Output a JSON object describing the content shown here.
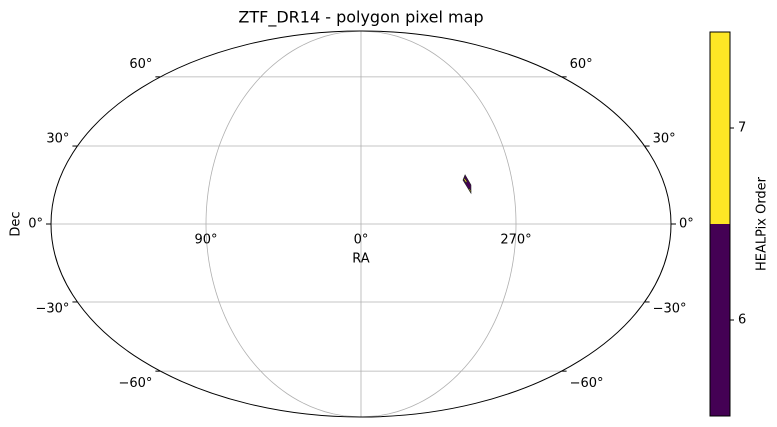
{
  "chart_data": {
    "type": "skymap",
    "projection": "mollweide",
    "title": "ZTF_DR14 - polygon pixel map",
    "xlabel": "RA",
    "ylabel": "Dec",
    "ra_ticks": [
      {
        "value": 90,
        "label": "90°"
      },
      {
        "value": 0,
        "label": "0°"
      },
      {
        "value": 270,
        "label": "270°"
      }
    ],
    "dec_ticks": [
      {
        "value": -60,
        "label": "−60°"
      },
      {
        "value": -30,
        "label": "−30°"
      },
      {
        "value": 0,
        "label": "0°"
      },
      {
        "value": 30,
        "label": "30°"
      },
      {
        "value": 60,
        "label": "60°"
      }
    ],
    "grid": true,
    "pixels": [
      {
        "order": 6,
        "ra": [
          297.5,
          294.8,
          295.3,
          299.2
        ],
        "dec": [
          18.7,
          14.8,
          11.7,
          16.7
        ]
      },
      {
        "order": 7,
        "ra": [
          298.2,
          297.0,
          297.4,
          298.6
        ],
        "dec": [
          17.6,
          16.2,
          15.5,
          16.9
        ]
      },
      {
        "order": 7,
        "ra": [
          296.0,
          295.2,
          295.5,
          296.3
        ],
        "dec": [
          13.6,
          12.5,
          12.0,
          13.1
        ]
      }
    ],
    "colorbar": {
      "label": "HEALPix Order",
      "clim": [
        5.5,
        7.5
      ],
      "ticks": [
        6,
        7
      ],
      "colors": [
        {
          "order": 6,
          "color": "#440154"
        },
        {
          "order": 7,
          "color": "#fde725"
        }
      ]
    }
  }
}
